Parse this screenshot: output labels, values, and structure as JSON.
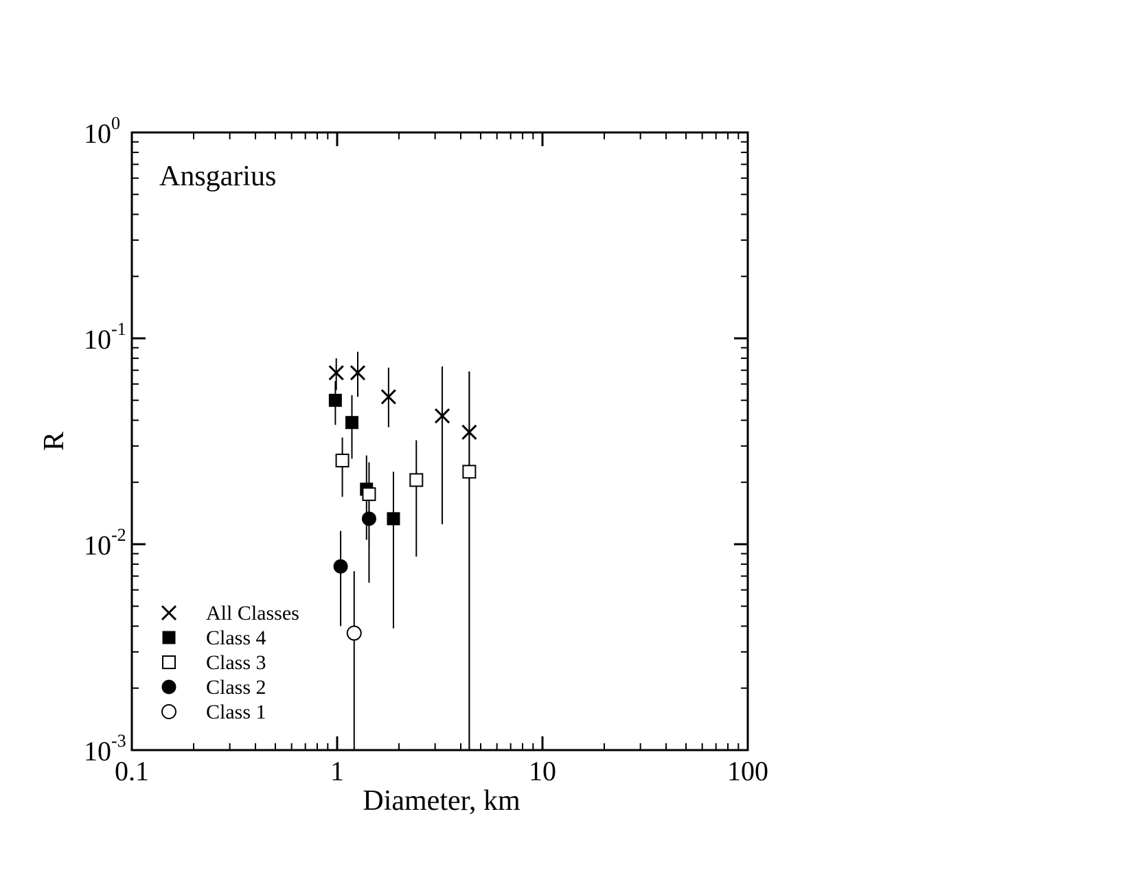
{
  "chart_data": {
    "type": "scatter",
    "title": "Ansgarius",
    "xlabel": "Diameter, km",
    "ylabel": "R",
    "x_scale": "log",
    "y_scale": "log",
    "xlim": [
      0.1,
      100
    ],
    "ylim": [
      0.001,
      1
    ],
    "x_ticks": [
      "0.1",
      "1",
      "10",
      "100"
    ],
    "y_ticks": [
      {
        "base": "10",
        "exp": "0",
        "value": 1
      },
      {
        "base": "10",
        "exp": "-1",
        "value": 0.1
      },
      {
        "base": "10",
        "exp": "-2",
        "value": 0.01
      },
      {
        "base": "10",
        "exp": "-3",
        "value": 0.001
      }
    ],
    "legend_position": "bottom-left",
    "series": [
      {
        "name": "All Classes",
        "marker": "x",
        "points": [
          {
            "x": 0.99,
            "y": 0.068,
            "lo": 0.056,
            "hi": 0.08
          },
          {
            "x": 1.26,
            "y": 0.068,
            "lo": 0.052,
            "hi": 0.086
          },
          {
            "x": 1.78,
            "y": 0.052,
            "lo": 0.037,
            "hi": 0.072
          },
          {
            "x": 3.25,
            "y": 0.042,
            "lo": 0.0125,
            "hi": 0.073
          },
          {
            "x": 4.4,
            "y": 0.035,
            "lo": 0.001,
            "hi": 0.069
          }
        ]
      },
      {
        "name": "Class 4",
        "marker": "filled-square",
        "points": [
          {
            "x": 0.98,
            "y": 0.05,
            "lo": 0.038,
            "hi": 0.062
          },
          {
            "x": 1.18,
            "y": 0.039,
            "lo": 0.026,
            "hi": 0.053
          },
          {
            "x": 1.39,
            "y": 0.0185,
            "lo": 0.0105,
            "hi": 0.027
          },
          {
            "x": 1.88,
            "y": 0.0133,
            "lo": 0.0039,
            "hi": 0.0225
          }
        ]
      },
      {
        "name": "Class 3",
        "marker": "open-square",
        "points": [
          {
            "x": 1.06,
            "y": 0.0255,
            "lo": 0.017,
            "hi": 0.033
          },
          {
            "x": 1.43,
            "y": 0.0175,
            "lo": 0.0095,
            "hi": 0.025
          },
          {
            "x": 2.43,
            "y": 0.0205,
            "lo": 0.0087,
            "hi": 0.032
          },
          {
            "x": 4.4,
            "y": 0.0225,
            "lo": 0.001,
            "hi": 0.069
          }
        ]
      },
      {
        "name": "Class 2",
        "marker": "filled-circle",
        "points": [
          {
            "x": 1.04,
            "y": 0.0078,
            "lo": 0.004,
            "hi": 0.0116
          },
          {
            "x": 1.43,
            "y": 0.0133,
            "lo": 0.0065,
            "hi": 0.0195
          }
        ]
      },
      {
        "name": "Class 1",
        "marker": "open-circle",
        "points": [
          {
            "x": 1.21,
            "y": 0.0037,
            "lo": 0.001,
            "hi": 0.0074
          }
        ]
      }
    ]
  }
}
